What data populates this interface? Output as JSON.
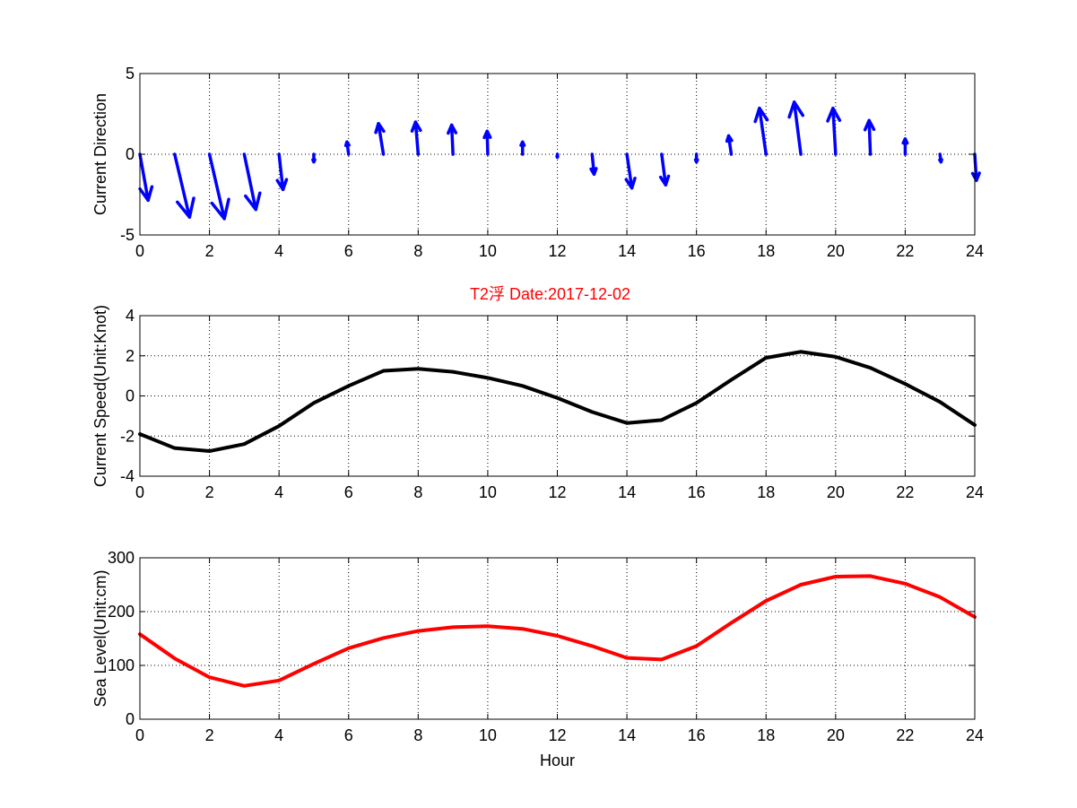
{
  "chart_data": [
    {
      "type": "quiver",
      "title": "",
      "xlabel": "",
      "ylabel": "Current Direction",
      "xlim": [
        0,
        24
      ],
      "ylim": [
        -5,
        5
      ],
      "xticks": [
        0,
        2,
        4,
        6,
        8,
        10,
        12,
        14,
        16,
        18,
        20,
        22,
        24
      ],
      "yticks": [
        -5,
        0,
        5
      ],
      "grid": true,
      "color": "#0000ff",
      "vectors": [
        {
          "x": 0,
          "u": 0.25,
          "v": -3.0
        },
        {
          "x": 1,
          "u": 0.45,
          "v": -4.1
        },
        {
          "x": 2,
          "u": 0.45,
          "v": -4.2
        },
        {
          "x": 3,
          "u": 0.35,
          "v": -3.6
        },
        {
          "x": 4,
          "u": 0.12,
          "v": -2.3
        },
        {
          "x": 5,
          "u": 0.0,
          "v": -0.5
        },
        {
          "x": 6,
          "u": -0.05,
          "v": 0.8
        },
        {
          "x": 7,
          "u": -0.15,
          "v": 2.0
        },
        {
          "x": 8,
          "u": -0.08,
          "v": 2.1
        },
        {
          "x": 9,
          "u": -0.04,
          "v": 1.9
        },
        {
          "x": 10,
          "u": -0.02,
          "v": 1.5
        },
        {
          "x": 11,
          "u": 0.0,
          "v": 0.8
        },
        {
          "x": 12,
          "u": 0.0,
          "v": -0.2
        },
        {
          "x": 13,
          "u": 0.06,
          "v": -1.3
        },
        {
          "x": 14,
          "u": 0.15,
          "v": -2.2
        },
        {
          "x": 15,
          "u": 0.12,
          "v": -2.0
        },
        {
          "x": 16,
          "u": 0.0,
          "v": -0.5
        },
        {
          "x": 17,
          "u": -0.08,
          "v": 1.2
        },
        {
          "x": 18,
          "u": -0.2,
          "v": 3.0
        },
        {
          "x": 19,
          "u": -0.2,
          "v": 3.4
        },
        {
          "x": 20,
          "u": -0.08,
          "v": 3.0
        },
        {
          "x": 21,
          "u": -0.04,
          "v": 2.2
        },
        {
          "x": 22,
          "u": 0.0,
          "v": 1.0
        },
        {
          "x": 23,
          "u": 0.03,
          "v": -0.5
        },
        {
          "x": 24,
          "u": 0.05,
          "v": -1.7
        }
      ]
    },
    {
      "type": "line",
      "title": "T2浮    Date:2017-12-02",
      "xlabel": "",
      "ylabel": "Current Speed(Unit:Knot)",
      "xlim": [
        0,
        24
      ],
      "ylim": [
        -4,
        4
      ],
      "xticks": [
        0,
        2,
        4,
        6,
        8,
        10,
        12,
        14,
        16,
        18,
        20,
        22,
        24
      ],
      "yticks": [
        -4,
        -2,
        0,
        2,
        4
      ],
      "grid": true,
      "x": [
        0,
        1,
        2,
        3,
        4,
        5,
        6,
        7,
        8,
        9,
        10,
        11,
        12,
        13,
        14,
        15,
        16,
        17,
        18,
        19,
        20,
        21,
        22,
        23,
        24
      ],
      "series": [
        {
          "color": "#000000",
          "values": [
            -1.9,
            -2.6,
            -2.75,
            -2.4,
            -1.5,
            -0.35,
            0.5,
            1.25,
            1.35,
            1.2,
            0.9,
            0.5,
            -0.1,
            -0.8,
            -1.35,
            -1.2,
            -0.35,
            0.8,
            1.9,
            2.2,
            1.95,
            1.4,
            0.6,
            -0.3,
            -1.45
          ]
        }
      ]
    },
    {
      "type": "line",
      "title": "",
      "xlabel": "Hour",
      "ylabel": "Sea Level(Unit:cm)",
      "xlim": [
        0,
        24
      ],
      "ylim": [
        0,
        300
      ],
      "xticks": [
        0,
        2,
        4,
        6,
        8,
        10,
        12,
        14,
        16,
        18,
        20,
        22,
        24
      ],
      "yticks": [
        0,
        100,
        200,
        300
      ],
      "grid": true,
      "x": [
        0,
        1,
        2,
        3,
        4,
        5,
        6,
        7,
        8,
        9,
        10,
        11,
        12,
        13,
        14,
        15,
        16,
        17,
        18,
        19,
        20,
        21,
        22,
        23,
        24
      ],
      "series": [
        {
          "color": "#ff0000",
          "values": [
            158,
            113,
            78,
            62,
            72,
            103,
            132,
            151,
            164,
            171,
            173,
            168,
            155,
            136,
            114,
            111,
            136,
            179,
            220,
            250,
            265,
            266,
            252,
            227,
            190
          ]
        }
      ]
    }
  ]
}
